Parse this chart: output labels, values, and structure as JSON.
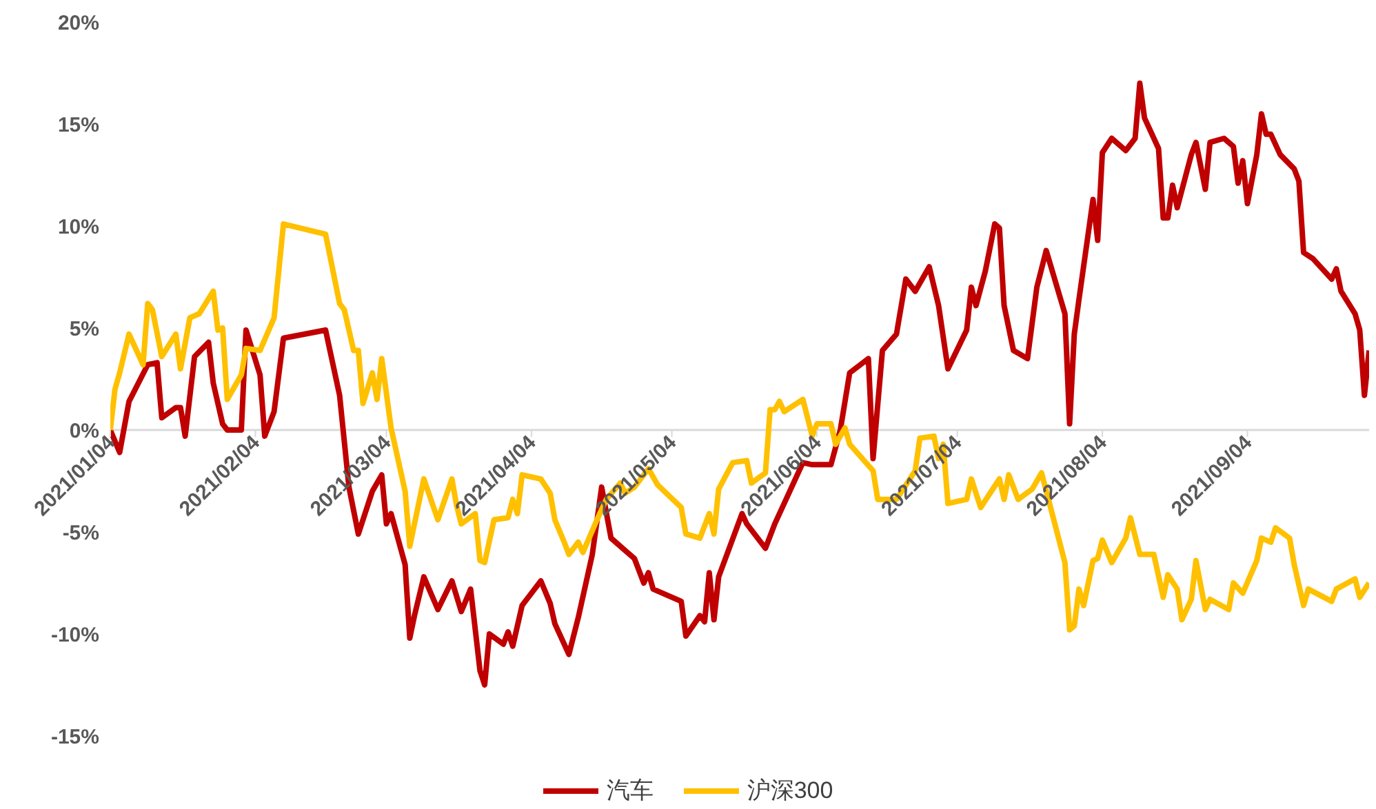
{
  "chart_data": {
    "type": "line",
    "xlim": [
      "2021-01-04",
      "2021-09-30"
    ],
    "xticks": [
      {
        "value": "2021-01-04",
        "label": "2021/01/04"
      },
      {
        "value": "2021-02-04",
        "label": "2021/02/04"
      },
      {
        "value": "2021-03-04",
        "label": "2021/03/04"
      },
      {
        "value": "2021-04-04",
        "label": "2021/04/04"
      },
      {
        "value": "2021-05-04",
        "label": "2021/05/04"
      },
      {
        "value": "2021-06-04",
        "label": "2021/06/04"
      },
      {
        "value": "2021-07-04",
        "label": "2021/07/04"
      },
      {
        "value": "2021-08-04",
        "label": "2021/08/04"
      },
      {
        "value": "2021-09-04",
        "label": "2021/09/04"
      }
    ],
    "ylim": [
      -15,
      20
    ],
    "yticks": [
      {
        "value": -15,
        "label": "-15%"
      },
      {
        "value": -10,
        "label": "-10%"
      },
      {
        "value": -5,
        "label": "-5%"
      },
      {
        "value": 0,
        "label": "0%"
      },
      {
        "value": 5,
        "label": "5%"
      },
      {
        "value": 10,
        "label": "10%"
      },
      {
        "value": 15,
        "label": "15%"
      },
      {
        "value": 20,
        "label": "20%"
      }
    ],
    "grid": false,
    "legend": "bottom",
    "marker": "none",
    "line_style": "solid",
    "series": [
      {
        "name": "汽车",
        "color": "#c00000",
        "x": [
          "2021-01-04",
          "2021-01-06",
          "2021-01-08",
          "2021-01-12",
          "2021-01-14",
          "2021-01-15",
          "2021-01-18",
          "2021-01-19",
          "2021-01-20",
          "2021-01-22",
          "2021-01-25",
          "2021-01-26",
          "2021-01-28",
          "2021-01-29",
          "2021-02-01",
          "2021-02-02",
          "2021-02-05",
          "2021-02-06",
          "2021-02-08",
          "2021-02-10",
          "2021-02-19",
          "2021-02-22",
          "2021-02-24",
          "2021-02-26",
          "2021-03-01",
          "2021-03-03",
          "2021-03-04",
          "2021-03-05",
          "2021-03-08",
          "2021-03-09",
          "2021-03-10",
          "2021-03-12",
          "2021-03-15",
          "2021-03-18",
          "2021-03-20",
          "2021-03-22",
          "2021-03-24",
          "2021-03-25",
          "2021-03-26",
          "2021-03-29",
          "2021-03-30",
          "2021-03-31",
          "2021-04-02",
          "2021-04-06",
          "2021-04-08",
          "2021-04-09",
          "2021-04-12",
          "2021-04-14",
          "2021-04-17",
          "2021-04-19",
          "2021-04-21",
          "2021-04-24",
          "2021-04-26",
          "2021-04-28",
          "2021-04-29",
          "2021-04-30",
          "2021-05-06",
          "2021-05-07",
          "2021-05-10",
          "2021-05-11",
          "2021-05-12",
          "2021-05-13",
          "2021-05-14",
          "2021-05-19",
          "2021-05-20",
          "2021-05-24",
          "2021-05-26",
          "2021-05-28",
          "2021-06-01",
          "2021-06-03",
          "2021-06-07",
          "2021-06-09",
          "2021-06-11",
          "2021-06-15",
          "2021-06-16",
          "2021-06-18",
          "2021-06-21",
          "2021-06-23",
          "2021-06-25",
          "2021-06-28",
          "2021-06-30",
          "2021-07-02",
          "2021-07-06",
          "2021-07-07",
          "2021-07-08",
          "2021-07-10",
          "2021-07-12",
          "2021-07-13",
          "2021-07-14",
          "2021-07-16",
          "2021-07-19",
          "2021-07-21",
          "2021-07-23",
          "2021-07-27",
          "2021-07-28",
          "2021-07-29",
          "2021-07-30",
          "2021-08-02",
          "2021-08-03",
          "2021-08-04",
          "2021-08-06",
          "2021-08-09",
          "2021-08-11",
          "2021-08-12",
          "2021-08-13",
          "2021-08-16",
          "2021-08-17",
          "2021-08-18",
          "2021-08-19",
          "2021-08-20",
          "2021-08-23",
          "2021-08-24",
          "2021-08-26",
          "2021-08-27",
          "2021-08-30",
          "2021-09-01",
          "2021-09-02",
          "2021-09-03",
          "2021-09-04",
          "2021-09-06",
          "2021-09-07",
          "2021-09-08",
          "2021-09-09",
          "2021-09-11",
          "2021-09-14",
          "2021-09-15",
          "2021-09-16",
          "2021-09-18",
          "2021-09-22",
          "2021-09-23",
          "2021-09-24",
          "2021-09-27",
          "2021-09-28",
          "2021-09-29",
          "2021-09-30"
        ],
        "values": [
          0,
          -1.1,
          1.4,
          3.2,
          3.3,
          0.6,
          1.1,
          1.1,
          -0.3,
          3.6,
          4.3,
          2.3,
          0.3,
          0,
          0,
          4.9,
          2.7,
          -0.3,
          0.9,
          4.5,
          4.9,
          1.7,
          -2.8,
          -5.1,
          -3.0,
          -2.2,
          -4.6,
          -4.1,
          -6.6,
          -10.2,
          -9.1,
          -7.2,
          -8.8,
          -7.4,
          -8.9,
          -7.8,
          -11.8,
          -12.5,
          -10.0,
          -10.5,
          -9.9,
          -10.6,
          -8.6,
          -7.4,
          -8.5,
          -9.5,
          -11.0,
          -9.2,
          -6.1,
          -2.8,
          -5.3,
          -5.9,
          -6.3,
          -7.5,
          -7.0,
          -7.8,
          -8.4,
          -10.1,
          -9.1,
          -9.4,
          -7.0,
          -9.3,
          -7.2,
          -4.1,
          -4.6,
          -5.8,
          -4.6,
          -3.6,
          -1.6,
          -1.7,
          -1.7,
          0,
          2.8,
          3.5,
          -1.4,
          3.9,
          4.7,
          7.4,
          6.8,
          8.0,
          6.1,
          3.0,
          4.9,
          7.0,
          6.1,
          7.8,
          10.1,
          9.9,
          6.1,
          3.9,
          3.5,
          7.0,
          8.8,
          5.7,
          0.3,
          4.7,
          6.4,
          11.3,
          9.3,
          13.6,
          14.3,
          13.7,
          14.3,
          17.0,
          15.3,
          13.8,
          10.4,
          10.4,
          12.0,
          10.9,
          13.5,
          14.1,
          11.8,
          14.1,
          14.3,
          13.9,
          12.1,
          13.2,
          11.1,
          13.5,
          15.5,
          14.5,
          14.5,
          13.5,
          12.8,
          12.2,
          8.7,
          8.4,
          7.4,
          7.9,
          6.8,
          5.7,
          4.9,
          1.7,
          3.9
        ]
      },
      {
        "name": "沪深300",
        "color": "#ffc000",
        "x": [
          "2021-01-04",
          "2021-01-05",
          "2021-01-06",
          "2021-01-08",
          "2021-01-11",
          "2021-01-12",
          "2021-01-13",
          "2021-01-15",
          "2021-01-18",
          "2021-01-19",
          "2021-01-21",
          "2021-01-23",
          "2021-01-26",
          "2021-01-27",
          "2021-01-28",
          "2021-01-29",
          "2021-02-01",
          "2021-02-02",
          "2021-02-05",
          "2021-02-08",
          "2021-02-10",
          "2021-02-19",
          "2021-02-22",
          "2021-02-23",
          "2021-02-25",
          "2021-02-26",
          "2021-02-27",
          "2021-03-01",
          "2021-03-02",
          "2021-03-03",
          "2021-03-05",
          "2021-03-08",
          "2021-03-09",
          "2021-03-12",
          "2021-03-15",
          "2021-03-18",
          "2021-03-19",
          "2021-03-20",
          "2021-03-23",
          "2021-03-24",
          "2021-03-25",
          "2021-03-27",
          "2021-03-30",
          "2021-03-31",
          "2021-04-01",
          "2021-04-02",
          "2021-04-06",
          "2021-04-08",
          "2021-04-09",
          "2021-04-11",
          "2021-04-12",
          "2021-04-14",
          "2021-04-15",
          "2021-04-18",
          "2021-04-20",
          "2021-04-23",
          "2021-04-24",
          "2021-04-26",
          "2021-04-29",
          "2021-05-01",
          "2021-05-06",
          "2021-05-07",
          "2021-05-10",
          "2021-05-12",
          "2021-05-13",
          "2021-05-14",
          "2021-05-17",
          "2021-05-20",
          "2021-05-21",
          "2021-05-24",
          "2021-05-25",
          "2021-05-26",
          "2021-05-27",
          "2021-05-28",
          "2021-06-01",
          "2021-06-03",
          "2021-06-04",
          "2021-06-07",
          "2021-06-08",
          "2021-06-10",
          "2021-06-11",
          "2021-06-16",
          "2021-06-17",
          "2021-06-21",
          "2021-06-25",
          "2021-06-26",
          "2021-06-29",
          "2021-06-30",
          "2021-07-01",
          "2021-07-02",
          "2021-07-06",
          "2021-07-07",
          "2021-07-09",
          "2021-07-13",
          "2021-07-14",
          "2021-07-15",
          "2021-07-17",
          "2021-07-20",
          "2021-07-22",
          "2021-07-27",
          "2021-07-28",
          "2021-07-29",
          "2021-07-30",
          "2021-07-31",
          "2021-08-02",
          "2021-08-03",
          "2021-08-04",
          "2021-08-06",
          "2021-08-09",
          "2021-08-10",
          "2021-08-12",
          "2021-08-15",
          "2021-08-17",
          "2021-08-18",
          "2021-08-20",
          "2021-08-21",
          "2021-08-23",
          "2021-08-24",
          "2021-08-26",
          "2021-08-27",
          "2021-08-31",
          "2021-09-01",
          "2021-09-03",
          "2021-09-06",
          "2021-09-07",
          "2021-09-09",
          "2021-09-10",
          "2021-09-13",
          "2021-09-14",
          "2021-09-16",
          "2021-09-17",
          "2021-09-22",
          "2021-09-23",
          "2021-09-27",
          "2021-09-28",
          "2021-09-30"
        ],
        "values": [
          0,
          2.0,
          2.8,
          4.7,
          3.2,
          6.2,
          5.9,
          3.6,
          4.7,
          3.0,
          5.5,
          5.7,
          6.8,
          4.9,
          5.0,
          1.5,
          2.7,
          4.0,
          3.9,
          5.5,
          10.1,
          9.6,
          6.2,
          5.9,
          3.9,
          3.9,
          1.3,
          2.8,
          1.5,
          3.5,
          0.1,
          -3.0,
          -5.7,
          -2.4,
          -4.4,
          -2.4,
          -3.7,
          -4.6,
          -4.1,
          -6.4,
          -6.5,
          -4.4,
          -4.3,
          -3.4,
          -4.1,
          -2.2,
          -2.4,
          -3.1,
          -4.4,
          -5.5,
          -6.1,
          -5.5,
          -6.0,
          -4.4,
          -3.4,
          -2.6,
          -3.1,
          -2.8,
          -1.9,
          -2.7,
          -3.8,
          -5.1,
          -5.3,
          -4.1,
          -5.1,
          -2.9,
          -1.6,
          -1.5,
          -2.6,
          -2.1,
          1.0,
          1.0,
          1.4,
          0.9,
          1.5,
          -0.3,
          0.3,
          0.3,
          -0.7,
          0.1,
          -0.7,
          -2.0,
          -3.4,
          -3.4,
          -2.0,
          -0.4,
          -0.3,
          -1.4,
          -0.7,
          -3.6,
          -3.4,
          -2.4,
          -3.8,
          -2.4,
          -3.4,
          -2.2,
          -3.4,
          -2.9,
          -2.1,
          -6.5,
          -9.8,
          -9.6,
          -7.8,
          -8.6,
          -6.4,
          -6.3,
          -5.4,
          -6.5,
          -5.3,
          -4.3,
          -6.1,
          -6.1,
          -8.2,
          -7.1,
          -7.8,
          -9.3,
          -8.3,
          -6.4,
          -8.8,
          -8.3,
          -8.8,
          -7.5,
          -8.0,
          -6.4,
          -5.3,
          -5.5,
          -4.8,
          -5.3,
          -6.6,
          -8.6,
          -7.8,
          -8.4,
          -7.8,
          -7.3,
          -8.2,
          -7.5
        ]
      }
    ]
  }
}
